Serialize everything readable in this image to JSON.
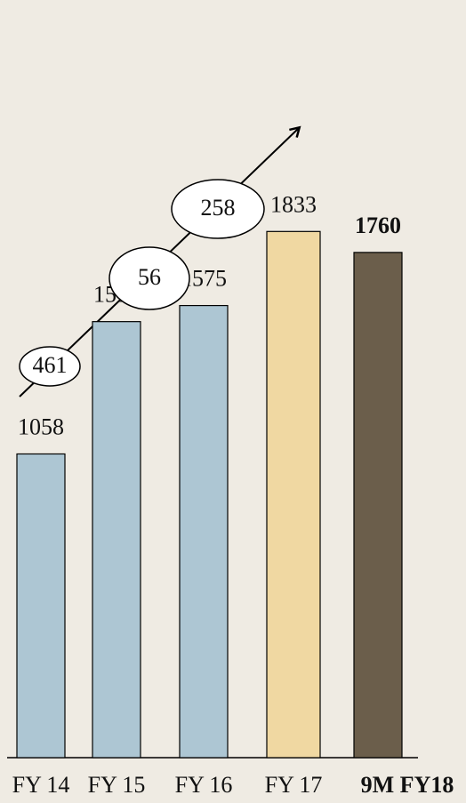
{
  "chart_data": {
    "type": "bar",
    "categories": [
      "FY 14",
      "FY 15",
      "FY 16",
      "FY 17",
      "9M FY18"
    ],
    "values": [
      1058,
      1519,
      1575,
      1833,
      1760
    ],
    "colors": [
      "#adc6d3",
      "#adc6d3",
      "#adc6d3",
      "#f0d8a2",
      "#6b5e4b"
    ],
    "ylim": [
      0,
      2500
    ],
    "increments": [
      461,
      56,
      258
    ]
  }
}
